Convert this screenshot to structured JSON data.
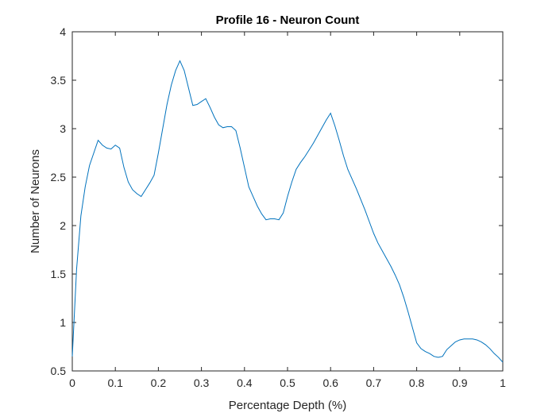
{
  "chart_data": {
    "type": "line",
    "title": "Profile 16 - Neuron Count",
    "xlabel": "Percentage Depth (%)",
    "ylabel": "Number of Neurons",
    "xlim": [
      0,
      1
    ],
    "ylim": [
      0.5,
      4
    ],
    "xticks": [
      "0",
      "0.1",
      "0.2",
      "0.3",
      "0.4",
      "0.5",
      "0.6",
      "0.7",
      "0.8",
      "0.9",
      "1"
    ],
    "yticks": [
      "0.5",
      "1",
      "1.5",
      "2",
      "2.5",
      "3",
      "3.5",
      "4"
    ],
    "grid": false,
    "line_color": "#0072BD",
    "series": [
      {
        "x": [
          0,
          0.01,
          0.02,
          0.03,
          0.04,
          0.05,
          0.06,
          0.07,
          0.08,
          0.09,
          0.1,
          0.11,
          0.12,
          0.13,
          0.14,
          0.15,
          0.16,
          0.17,
          0.18,
          0.19,
          0.2,
          0.21,
          0.22,
          0.23,
          0.24,
          0.25,
          0.26,
          0.27,
          0.28,
          0.29,
          0.3,
          0.31,
          0.32,
          0.33,
          0.34,
          0.35,
          0.36,
          0.37,
          0.38,
          0.39,
          0.4,
          0.41,
          0.42,
          0.43,
          0.44,
          0.45,
          0.46,
          0.47,
          0.48,
          0.49,
          0.5,
          0.51,
          0.52,
          0.53,
          0.54,
          0.55,
          0.56,
          0.57,
          0.58,
          0.59,
          0.6,
          0.61,
          0.62,
          0.63,
          0.64,
          0.65,
          0.66,
          0.67,
          0.68,
          0.69,
          0.7,
          0.71,
          0.72,
          0.73,
          0.74,
          0.75,
          0.76,
          0.77,
          0.78,
          0.79,
          0.8,
          0.81,
          0.82,
          0.83,
          0.84,
          0.85,
          0.86,
          0.87,
          0.88,
          0.89,
          0.9,
          0.91,
          0.92,
          0.93,
          0.94,
          0.95,
          0.96,
          0.97,
          0.98,
          0.99,
          1.0
        ],
        "y": [
          0.65,
          1.55,
          2.1,
          2.4,
          2.62,
          2.75,
          2.88,
          2.83,
          2.8,
          2.79,
          2.83,
          2.8,
          2.6,
          2.45,
          2.37,
          2.33,
          2.3,
          2.37,
          2.44,
          2.52,
          2.75,
          3.0,
          3.25,
          3.45,
          3.6,
          3.7,
          3.6,
          3.42,
          3.24,
          3.25,
          3.28,
          3.31,
          3.22,
          3.12,
          3.04,
          3.01,
          3.02,
          3.02,
          2.98,
          2.8,
          2.6,
          2.4,
          2.3,
          2.2,
          2.12,
          2.06,
          2.07,
          2.07,
          2.06,
          2.13,
          2.3,
          2.45,
          2.58,
          2.65,
          2.71,
          2.78,
          2.85,
          2.93,
          3.01,
          3.09,
          3.16,
          3.03,
          2.88,
          2.72,
          2.58,
          2.48,
          2.38,
          2.27,
          2.16,
          2.04,
          1.92,
          1.82,
          1.74,
          1.66,
          1.58,
          1.49,
          1.39,
          1.26,
          1.11,
          0.95,
          0.79,
          0.73,
          0.7,
          0.68,
          0.65,
          0.64,
          0.65,
          0.72,
          0.76,
          0.8,
          0.82,
          0.83,
          0.83,
          0.83,
          0.82,
          0.8,
          0.77,
          0.73,
          0.68,
          0.64,
          0.59
        ]
      }
    ]
  }
}
